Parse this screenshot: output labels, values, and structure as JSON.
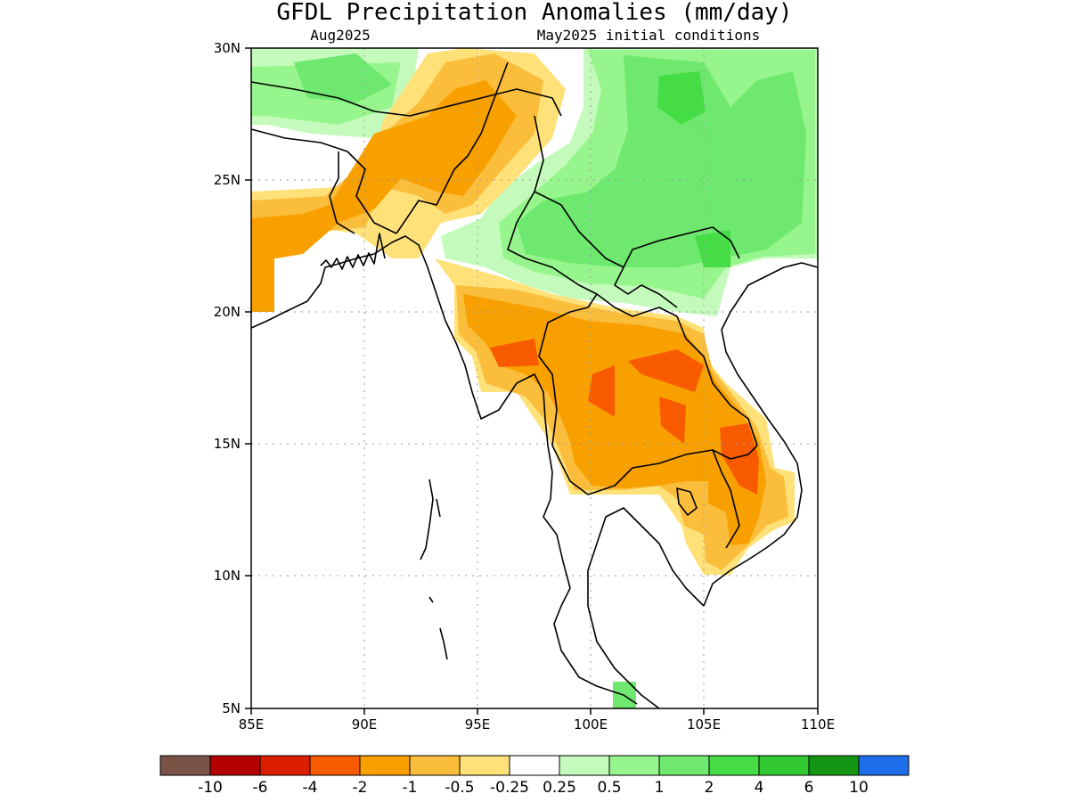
{
  "title": "GFDL Precipitation Anomalies (mm/day)",
  "subtitle_left": "Aug2025",
  "subtitle_right": "May2025 initial conditions",
  "axes": {
    "lon_range": [
      85,
      110
    ],
    "lat_range": [
      5,
      30
    ],
    "x_tick_labels": [
      "85E",
      "90E",
      "95E",
      "100E",
      "105E",
      "110E"
    ],
    "y_tick_labels": [
      "5N",
      "10N",
      "15N",
      "20N",
      "25N",
      "30N"
    ],
    "grid": true
  },
  "colorbar": {
    "colors": [
      "#7a5246",
      "#b40000",
      "#dc1e00",
      "#f85a00",
      "#f8a000",
      "#fbbe3c",
      "#ffe17a",
      "#ffffff",
      "#c4fbbc",
      "#96f58c",
      "#6ee86e",
      "#46dc46",
      "#32c832",
      "#149614",
      "#1e6eeb"
    ],
    "labels": [
      "-10",
      "-6",
      "-4",
      "-2",
      "-1",
      "-0.5",
      "-0.25",
      "0.25",
      "0.5",
      "1",
      "2",
      "4",
      "6",
      "10"
    ]
  }
}
